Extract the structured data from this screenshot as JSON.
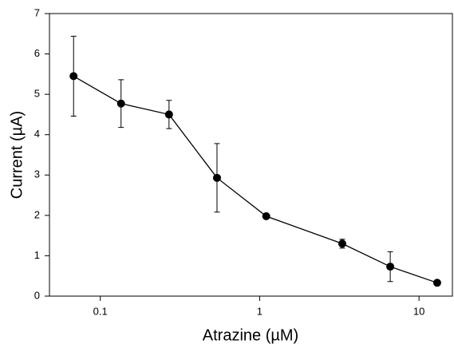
{
  "chart_data": {
    "type": "line",
    "xlabel": "Atrazine (µM)",
    "ylabel": "Current (µA)",
    "x": [
      0.068,
      0.135,
      0.27,
      0.54,
      1.1,
      3.3,
      6.6,
      13
    ],
    "series": [
      {
        "color": "#000000",
        "values": [
          5.45,
          4.77,
          4.5,
          2.93,
          1.98,
          1.3,
          0.73,
          0.33
        ],
        "errors": [
          0.99,
          0.59,
          0.35,
          0.85,
          0,
          0.11,
          0.37,
          0
        ]
      }
    ],
    "xscale": "log",
    "xlim": [
      0.048,
      16.2
    ],
    "xticks": [
      0.1,
      1,
      10
    ],
    "ylim": [
      0,
      7
    ],
    "yticks": [
      0,
      1,
      2,
      3,
      4,
      5,
      6,
      7
    ]
  }
}
